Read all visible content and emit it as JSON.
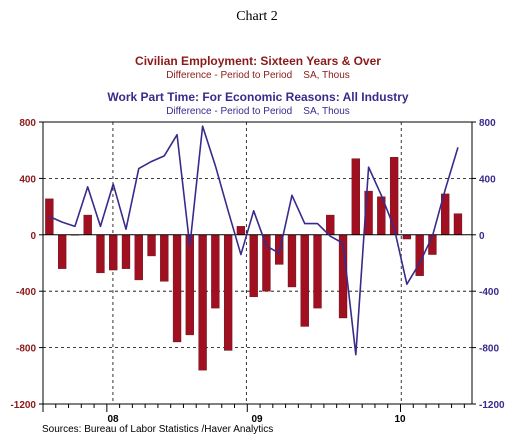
{
  "chart_data": {
    "type": "bar+line",
    "title": "Chart 2",
    "series": [
      {
        "name": "Civilian Employment: Sixteen Years & Over",
        "subtitle": "Difference - Period to Period    SA, Thous",
        "type": "bar",
        "axis": "left",
        "color": "#a01020",
        "values": [
          255,
          -240,
          0,
          140,
          -270,
          -250,
          -240,
          -320,
          -150,
          -330,
          -760,
          -710,
          -960,
          -520,
          -820,
          60,
          -440,
          -400,
          -210,
          -370,
          -650,
          -520,
          140,
          -590,
          540,
          310,
          270,
          550,
          -30,
          -290,
          -140,
          290,
          150
        ]
      },
      {
        "name": "Work Part Time: For Economic Reasons: All Industry",
        "subtitle": "Difference - Period to Period    SA, Thous",
        "type": "line",
        "axis": "right",
        "color": "#3a2a8c",
        "values": [
          130,
          90,
          60,
          340,
          60,
          360,
          40,
          470,
          520,
          560,
          710,
          -80,
          770,
          490,
          170,
          -140,
          170,
          -80,
          -130,
          280,
          80,
          80,
          -10,
          -60,
          -850,
          480,
          280,
          50,
          -350,
          -200,
          -10,
          320,
          620
        ]
      }
    ],
    "x_labels": [
      "08",
      "09",
      "10"
    ],
    "ylim_left": [
      -1200,
      800
    ],
    "ylim_right": [
      -1200,
      800
    ],
    "yticks": [
      800,
      400,
      0,
      -400,
      -800,
      -1200
    ],
    "ytick_labels_left": [
      "800",
      "400",
      "0",
      "-400",
      "-800",
      "-1200"
    ],
    "ytick_labels_right": [
      "800",
      "400",
      "0",
      "-400",
      "-800",
      "-1200"
    ],
    "grid": true,
    "source": "Sources:  Bureau of Labor Statistics /Haver Analytics"
  }
}
